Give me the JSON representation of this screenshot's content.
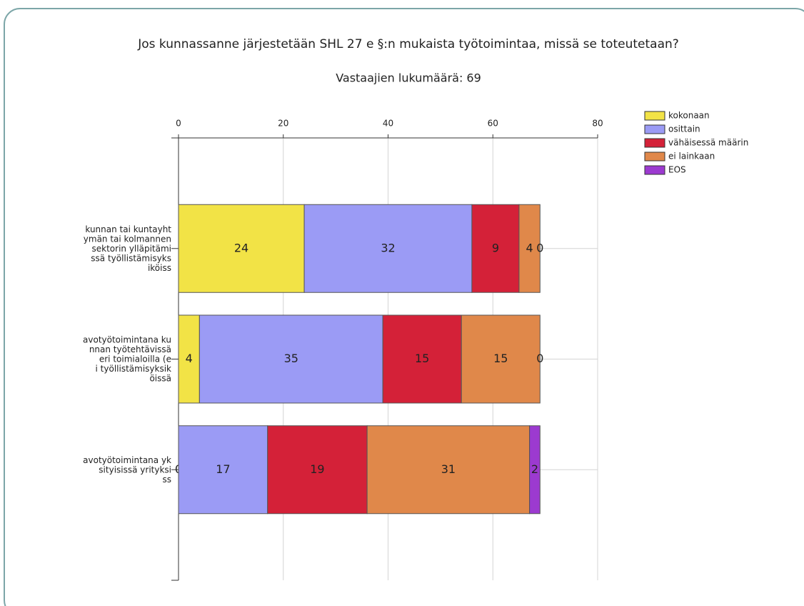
{
  "chart_data": {
    "type": "stacked-barh",
    "title": "Jos kunnassanne järjestetään SHL 27 e §:n mukaista työtoimintaa, missä se toteutetaan?",
    "subtitle": "Vastaajien lukumäärä: 69",
    "categories": [
      [
        "kunnan tai kuntayht",
        "ymän tai kolmannen",
        "sektorin ylläpitämi",
        "ssä työllistämisyks",
        "iköiss"
      ],
      [
        "avotyötoimintana ku",
        "nnan työtehtävissä",
        "eri toimialoilla (e",
        "i työllistämisyksik",
        "öissä"
      ],
      [
        "avotyötoimintana yk",
        "sityisissä yrityksi",
        "ss"
      ]
    ],
    "series": [
      {
        "name": "kokonaan",
        "color": "#f2e346",
        "values": [
          24,
          4,
          0
        ]
      },
      {
        "name": "osittain",
        "color": "#9b9bf5",
        "values": [
          32,
          35,
          17
        ]
      },
      {
        "name": "vähäisessä määrin",
        "color": "#d42138",
        "values": [
          9,
          15,
          19
        ]
      },
      {
        "name": "ei lainkaan",
        "color": "#e0884a",
        "values": [
          4,
          15,
          31
        ]
      },
      {
        "name": "EOS",
        "color": "#9c3ad0",
        "values": [
          0,
          0,
          2
        ]
      }
    ],
    "xlim": [
      0,
      80
    ],
    "xticks": [
      0,
      20,
      40,
      60,
      80
    ],
    "grid": true,
    "legend": "top-right"
  }
}
